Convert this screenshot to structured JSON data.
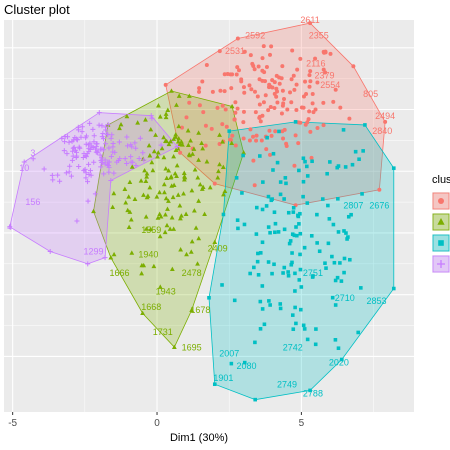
{
  "chart_data": {
    "type": "scatter",
    "title": "Cluster plot",
    "xlabel": "Dim1 (30%)",
    "ylabel": "",
    "xlim": [
      -5.3,
      8.9
    ],
    "ylim": [
      -5.8,
      6.9
    ],
    "x_ticks": [
      -5,
      0,
      5
    ],
    "x_tick_labels": [
      "-5",
      "0",
      "5"
    ],
    "y_ticks": [
      -4,
      -2,
      0,
      2,
      4,
      6
    ],
    "grid": true,
    "legend_title": "clus",
    "legend_placement": "right",
    "series": [
      {
        "color": "#F8766D",
        "marker": "circle",
        "hull": [
          [
            0.3,
            4.8
          ],
          [
            2.8,
            6.3
          ],
          [
            5.3,
            6.8
          ],
          [
            6.8,
            5.4
          ],
          [
            7.9,
            3.6
          ],
          [
            7.7,
            1.4
          ],
          [
            4.8,
            0.9
          ],
          [
            2.0,
            1.6
          ],
          [
            0.8,
            2.6
          ]
        ],
        "cloud": {
          "cx": 3.8,
          "cy": 4.3,
          "sx": 1.35,
          "sy": 1.05,
          "n": 170
        },
        "labels": [
          {
            "text": "2611",
            "x": 5.3,
            "y": 6.8
          },
          {
            "text": "2592",
            "x": 3.4,
            "y": 6.3
          },
          {
            "text": "2355",
            "x": 5.6,
            "y": 6.3
          },
          {
            "text": "2531",
            "x": 2.7,
            "y": 5.8
          },
          {
            "text": "2116",
            "x": 5.5,
            "y": 5.4
          },
          {
            "text": "2379",
            "x": 5.8,
            "y": 5.0
          },
          {
            "text": "2554",
            "x": 6.0,
            "y": 4.7
          },
          {
            "text": "805",
            "x": 7.4,
            "y": 4.4
          },
          {
            "text": "2494",
            "x": 7.9,
            "y": 3.7
          },
          {
            "text": "2840",
            "x": 7.8,
            "y": 3.2
          }
        ]
      },
      {
        "color": "#7CAE00",
        "marker": "triangle",
        "hull": [
          [
            -1.7,
            3.5
          ],
          [
            0.5,
            4.6
          ],
          [
            2.6,
            4.1
          ],
          [
            3.0,
            2.6
          ],
          [
            2.0,
            -0.3
          ],
          [
            1.2,
            -2.5
          ],
          [
            0.6,
            -3.7
          ],
          [
            -0.5,
            -2.6
          ],
          [
            -1.6,
            -0.8
          ],
          [
            -2.2,
            0.7
          ]
        ],
        "cloud": {
          "cx": 0.5,
          "cy": 1.8,
          "sx": 1.0,
          "sy": 1.35,
          "n": 150
        },
        "labels": [
          {
            "text": "1940",
            "x": -0.3,
            "y": -0.8
          },
          {
            "text": "1666",
            "x": -1.3,
            "y": -1.4
          },
          {
            "text": "2478",
            "x": 1.2,
            "y": -1.4
          },
          {
            "text": "1943",
            "x": 0.3,
            "y": -2.0
          },
          {
            "text": "1668",
            "x": -0.2,
            "y": -2.5
          },
          {
            "text": "1678",
            "x": 1.5,
            "y": -2.6
          },
          {
            "text": "1731",
            "x": 0.2,
            "y": -3.3
          },
          {
            "text": "1695",
            "x": 1.2,
            "y": -3.8
          },
          {
            "text": "1559",
            "x": -0.2,
            "y": 0.0
          },
          {
            "text": "2409",
            "x": 2.1,
            "y": -0.6
          }
        ]
      },
      {
        "color": "#00BFC4",
        "marker": "square",
        "hull": [
          [
            2.5,
            3.3
          ],
          [
            4.8,
            3.6
          ],
          [
            7.2,
            3.5
          ],
          [
            8.2,
            2.1
          ],
          [
            8.2,
            -1.8
          ],
          [
            6.4,
            -4.1
          ],
          [
            5.3,
            -5.1
          ],
          [
            3.4,
            -5.4
          ],
          [
            2.0,
            -4.9
          ],
          [
            1.8,
            -2.1
          ],
          [
            2.3,
            0.6
          ]
        ],
        "cloud": {
          "cx": 4.9,
          "cy": -0.3,
          "sx": 1.4,
          "sy": 1.9,
          "n": 150
        },
        "labels": [
          {
            "text": "2807",
            "x": 6.8,
            "y": 0.8
          },
          {
            "text": "2676",
            "x": 7.7,
            "y": 0.8
          },
          {
            "text": "2853",
            "x": 7.6,
            "y": -2.3
          },
          {
            "text": "2710",
            "x": 6.5,
            "y": -2.2
          },
          {
            "text": "2007",
            "x": 2.5,
            "y": -4.0
          },
          {
            "text": "2080",
            "x": 3.1,
            "y": -4.4
          },
          {
            "text": "1901",
            "x": 2.3,
            "y": -4.8
          },
          {
            "text": "2749",
            "x": 4.5,
            "y": -5.0
          },
          {
            "text": "2742",
            "x": 4.7,
            "y": -3.8
          },
          {
            "text": "2788",
            "x": 5.4,
            "y": -5.3
          },
          {
            "text": "2020",
            "x": 6.3,
            "y": -4.3
          },
          {
            "text": "2751",
            "x": 5.4,
            "y": -1.4
          }
        ]
      },
      {
        "color": "#C77CFF",
        "marker": "plus",
        "hull": [
          [
            -5.1,
            0.2
          ],
          [
            -4.6,
            2.3
          ],
          [
            -2.0,
            3.9
          ],
          [
            -0.2,
            3.8
          ],
          [
            0.7,
            2.8
          ],
          [
            -1.6,
            1.7
          ],
          [
            -1.8,
            -0.8
          ],
          [
            -2.4,
            -1.0
          ],
          [
            -3.7,
            -0.6
          ]
        ],
        "cloud": {
          "cx": -2.2,
          "cy": 2.6,
          "sx": 1.0,
          "sy": 0.55,
          "n": 140
        },
        "labels": [
          {
            "text": "4",
            "x": -5.1,
            "y": 0.1
          },
          {
            "text": "156",
            "x": -4.3,
            "y": 0.9
          },
          {
            "text": "10",
            "x": -4.6,
            "y": 2.0
          },
          {
            "text": "3",
            "x": -4.3,
            "y": 2.5
          },
          {
            "text": "1299",
            "x": -2.2,
            "y": -0.7
          }
        ]
      }
    ]
  }
}
